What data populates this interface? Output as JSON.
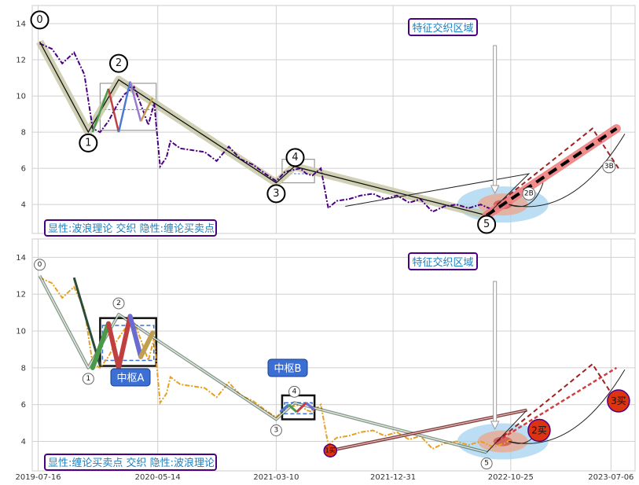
{
  "colors": {
    "price_top": "#4b0082",
    "price_bottom": "#e8a020",
    "wave_band": "#c8c8a8",
    "buy_circle": "#dd3311",
    "zhongshu_box": "#3b6fd4",
    "dashed_projection": "#a02020",
    "thick_projection_band": "#f08080",
    "ellipse_outer": "#9fd0f0",
    "ellipse_mid": "#e8a890",
    "ellipse_inner": "#cc4444"
  },
  "chart_data": [
    {
      "type": "line",
      "panel": "top",
      "title": "",
      "xlabel": "",
      "ylabel": "",
      "ylim": [
        2.4,
        15.0
      ],
      "yticks": [
        "4",
        "6",
        "8",
        "10",
        "12",
        "14"
      ],
      "grid": true,
      "series": [
        {
          "role": "price",
          "x": [
            "2019-07-20",
            "2019-08-20",
            "2019-09-15",
            "2019-10-15",
            "2019-11-10",
            "2019-12-01",
            "2019-12-20",
            "2020-01-10",
            "2020-02-01",
            "2020-02-20",
            "2020-03-15",
            "2020-04-05",
            "2020-04-20",
            "2020-05-05",
            "2020-05-20",
            "2020-06-05",
            "2020-06-15",
            "2020-07-10",
            "2020-08-10",
            "2020-09-10",
            "2020-10-10",
            "2020-11-10",
            "2020-12-10",
            "2021-01-10",
            "2021-02-10",
            "2021-03-10",
            "2021-04-01",
            "2021-04-20",
            "2021-05-10",
            "2021-05-25",
            "2021-06-10",
            "2021-07-01",
            "2021-07-20",
            "2021-08-10",
            "2021-09-10",
            "2021-10-10",
            "2021-11-10",
            "2021-12-10",
            "2022-01-10",
            "2022-02-10",
            "2022-03-10",
            "2022-04-10",
            "2022-05-10",
            "2022-06-10",
            "2022-07-10",
            "2022-08-10",
            "2022-09-10",
            "2022-10-10",
            "2022-10-25"
          ],
          "values": [
            12.9,
            12.6,
            11.8,
            12.4,
            11.2,
            8.2,
            8.0,
            8.6,
            9.5,
            10.1,
            10.5,
            9.3,
            8.4,
            9.6,
            6.1,
            6.6,
            7.5,
            7.1,
            7.0,
            6.9,
            6.4,
            7.2,
            6.5,
            6.2,
            5.7,
            5.3,
            5.8,
            5.9,
            6.0,
            5.7,
            5.6,
            6.0,
            3.8,
            4.2,
            4.3,
            4.5,
            4.6,
            4.3,
            4.5,
            4.1,
            4.3,
            3.6,
            3.9,
            4.0,
            3.8,
            4.0,
            3.7,
            3.9,
            4.1
          ]
        },
        {
          "role": "wave",
          "x": [
            "2019-07-20",
            "2019-11-20",
            "2020-02-05",
            "2021-03-10",
            "2021-04-25",
            "2022-08-25"
          ],
          "values": [
            13.0,
            8.0,
            10.9,
            5.2,
            6.1,
            3.4
          ],
          "point_labels": [
            "0",
            "1",
            "2",
            "3",
            "4",
            "5"
          ]
        },
        {
          "role": "projection",
          "x": [
            "2022-08-25",
            "2023-07-20"
          ],
          "values": [
            3.4,
            8.2
          ]
        },
        {
          "role": "dashed_projection",
          "x": [
            "2022-09-20",
            "2022-12-10",
            "2023-05-20",
            "2023-07-25"
          ],
          "values": [
            4.0,
            5.4,
            8.2,
            6.0
          ]
        }
      ],
      "markers": [
        {
          "x": "2022-12-10",
          "y": 4.6,
          "label": "2B"
        },
        {
          "x": "2023-07-01",
          "y": 6.1,
          "label": "3B"
        }
      ],
      "annotations": {
        "feature_region": "特征交织区域",
        "caption": "显性:波浪理论 交织 隐性:缠论买卖点"
      }
    },
    {
      "type": "line",
      "panel": "bottom",
      "title": "",
      "xlabel": "",
      "ylabel": "",
      "ylim": [
        2.4,
        15.0
      ],
      "yticks": [
        "4",
        "6",
        "8",
        "10",
        "12",
        "14"
      ],
      "xticks": [
        "2019-07-16",
        "2020-05-14",
        "2021-03-10",
        "2021-12-31",
        "2022-10-25",
        "2023-07-06"
      ],
      "grid": true,
      "series": [
        {
          "role": "price",
          "x": [
            "2019-07-20",
            "2019-08-20",
            "2019-09-15",
            "2019-10-15",
            "2019-11-10",
            "2019-12-01",
            "2019-12-20",
            "2020-01-10",
            "2020-02-01",
            "2020-02-20",
            "2020-03-15",
            "2020-04-05",
            "2020-04-20",
            "2020-05-05",
            "2020-05-20",
            "2020-06-05",
            "2020-06-15",
            "2020-07-10",
            "2020-08-10",
            "2020-09-10",
            "2020-10-10",
            "2020-11-10",
            "2020-12-10",
            "2021-01-10",
            "2021-02-10",
            "2021-03-10",
            "2021-04-01",
            "2021-04-20",
            "2021-05-10",
            "2021-05-25",
            "2021-06-10",
            "2021-07-01",
            "2021-07-20",
            "2021-08-10",
            "2021-09-10",
            "2021-10-10",
            "2021-11-10",
            "2021-12-10",
            "2022-01-10",
            "2022-02-10",
            "2022-03-10",
            "2022-04-10",
            "2022-05-10",
            "2022-06-10",
            "2022-07-10",
            "2022-08-10",
            "2022-09-10",
            "2022-10-10",
            "2022-10-25"
          ],
          "values": [
            12.9,
            12.6,
            11.8,
            12.4,
            11.2,
            8.2,
            8.0,
            8.6,
            9.5,
            10.1,
            10.5,
            9.3,
            8.4,
            9.6,
            6.1,
            6.6,
            7.5,
            7.1,
            7.0,
            6.9,
            6.4,
            7.2,
            6.5,
            6.2,
            5.7,
            5.3,
            5.8,
            5.9,
            6.0,
            5.7,
            5.6,
            6.0,
            3.8,
            4.2,
            4.3,
            4.5,
            4.6,
            4.3,
            4.5,
            4.1,
            4.3,
            3.6,
            3.9,
            4.0,
            3.8,
            4.0,
            3.7,
            3.9,
            4.1
          ]
        },
        {
          "role": "stroke_lines",
          "x": [
            "2019-07-20",
            "2019-11-20",
            "2020-02-05",
            "2021-03-10",
            "2021-04-25",
            "2022-08-25"
          ],
          "values": [
            13.0,
            8.0,
            10.9,
            5.2,
            6.1,
            3.4
          ],
          "point_labels": [
            "0",
            "1",
            "2",
            "3",
            "4",
            "5"
          ]
        },
        {
          "role": "buy_segment",
          "x": [
            "2021-07-25",
            "2022-12-05"
          ],
          "values": [
            3.5,
            5.7
          ]
        },
        {
          "role": "dashed_projection",
          "x": [
            "2022-09-20",
            "2022-12-10",
            "2023-05-20",
            "2023-07-25"
          ],
          "values": [
            4.0,
            5.4,
            8.2,
            6.0
          ]
        }
      ],
      "zhongshu": [
        {
          "label": "中枢A",
          "x": [
            "2019-12-20",
            "2020-05-10"
          ],
          "y": [
            8.2,
            10.3
          ]
        },
        {
          "label": "中枢B",
          "x": [
            "2021-03-25",
            "2021-06-15"
          ],
          "y": [
            5.3,
            6.1
          ]
        }
      ],
      "buy_points": [
        {
          "label": "1买",
          "x": "2021-07-25",
          "y": 3.5
        },
        {
          "label": "2买",
          "x": "2023-01-05",
          "y": 4.6
        },
        {
          "label": "3买",
          "x": "2023-07-25",
          "y": 6.2
        }
      ],
      "annotations": {
        "feature_region": "特征交织区域",
        "caption": "显性:缠论买卖点 交织 隐性:波浪理论"
      }
    }
  ]
}
